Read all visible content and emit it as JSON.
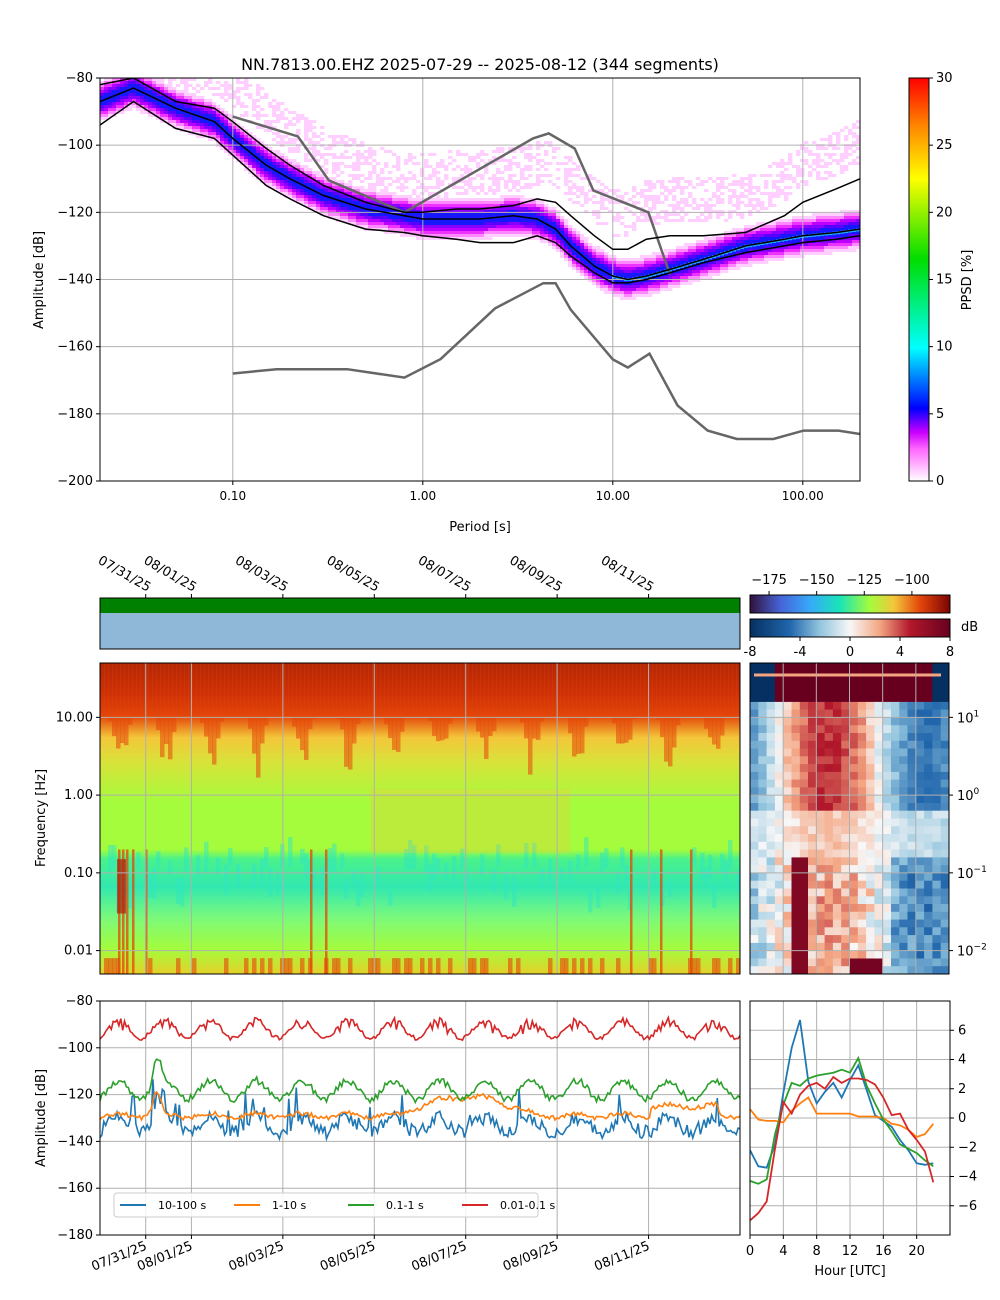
{
  "chart_data": [
    {
      "type": "heatmap",
      "panel": "ppsd",
      "title": "NN.7813.00.EHZ   2025-07-29 -- 2025-08-12  (344 segments)",
      "xlabel": "Period [s]",
      "ylabel": "Amplitude [dB]",
      "x_scale": "log",
      "xlim": [
        0.02,
        200
      ],
      "ylim": [
        -200,
        -80
      ],
      "x_ticks": [
        0.1,
        1,
        10,
        100
      ],
      "x_tick_labels": [
        "0.10",
        "1.00",
        "10.00",
        "100.00"
      ],
      "y_ticks": [
        -200,
        -180,
        -160,
        -140,
        -120,
        -100,
        -80
      ],
      "y_tick_labels": [
        "−200",
        "−180",
        "−160",
        "−140",
        "−120",
        "−100",
        "−80"
      ],
      "grid": true,
      "colorbar": {
        "label": "PPSD [%]",
        "range": [
          0,
          30
        ],
        "ticks": [
          0,
          5,
          10,
          15,
          20,
          25,
          30
        ],
        "tick_labels": [
          "0",
          "5",
          "10",
          "15",
          "20",
          "25",
          "30"
        ],
        "colormap": [
          "#ffffff",
          "#ff33ff",
          "#aa00ff",
          "#0000ff",
          "#00ffff",
          "#00ff00",
          "#ffff00",
          "#ff8800",
          "#ff0000"
        ]
      },
      "mode_curve": {
        "period": [
          0.02,
          0.03,
          0.05,
          0.08,
          0.1,
          0.15,
          0.2,
          0.3,
          0.5,
          0.8,
          1,
          1.5,
          2,
          3,
          4,
          5,
          6,
          8,
          10,
          12,
          15,
          20,
          30,
          50,
          80,
          100,
          150,
          200
        ],
        "db": [
          -87,
          -83,
          -89,
          -93,
          -98,
          -106,
          -110,
          -115,
          -119,
          -121,
          -122,
          -122,
          -122,
          -121,
          -122,
          -125,
          -130,
          -136,
          -139,
          -140,
          -139,
          -137,
          -134,
          -130,
          -128,
          -127,
          -126,
          -125
        ]
      },
      "percentile_curves": [
        {
          "period": [
            0.02,
            0.03,
            0.05,
            0.08,
            0.1,
            0.15,
            0.2,
            0.3,
            0.5,
            0.8,
            1,
            1.5,
            2,
            3,
            4,
            5,
            6,
            8,
            10,
            12,
            15,
            20,
            30,
            50,
            80,
            100,
            150,
            200
          ],
          "db": [
            -94,
            -87,
            -95,
            -98,
            -103,
            -112,
            -116,
            -121,
            -125,
            -126,
            -127,
            -128,
            -129,
            -129,
            -127,
            -129,
            -133,
            -138,
            -141,
            -141,
            -140,
            -138,
            -135,
            -132,
            -130,
            -129,
            -128,
            -127
          ]
        },
        {
          "period": [
            0.02,
            0.03,
            0.05,
            0.08,
            0.1,
            0.15,
            0.2,
            0.3,
            0.5,
            0.8,
            1,
            1.5,
            2,
            3,
            4,
            5,
            6,
            8,
            10,
            12,
            15,
            20,
            30,
            50,
            80,
            100,
            150,
            200
          ],
          "db": [
            -82,
            -80,
            -87,
            -89,
            -93,
            -101,
            -106,
            -112,
            -117,
            -120,
            -120,
            -119,
            -119,
            -118,
            -116,
            -117,
            -121,
            -127,
            -131,
            -131,
            -128,
            -127,
            -127,
            -126,
            -121,
            -117,
            -113,
            -110
          ]
        }
      ],
      "nlnm": {
        "period": [
          0.1,
          0.17,
          0.4,
          0.8,
          1.24,
          2.4,
          4.3,
          5.0,
          6.0,
          10,
          12,
          15.6,
          21.9,
          31.6,
          45,
          70,
          101,
          154,
          200
        ],
        "db": [
          -168,
          -166.7,
          -166.7,
          -169.2,
          -163.7,
          -148.6,
          -141.1,
          -141.1,
          -149,
          -163.8,
          -166.2,
          -162.1,
          -177.5,
          -185,
          -187.5,
          -187.5,
          -185,
          -185,
          -186
        ]
      },
      "nhnm": {
        "period": [
          0.1,
          0.22,
          0.32,
          0.8,
          3.8,
          4.6,
          6.3,
          7.9,
          15.4,
          20
        ],
        "db": [
          -91.5,
          -97.4,
          -110.5,
          -120,
          -98,
          -96.5,
          -101,
          -113.5,
          -120,
          -138.5
        ]
      }
    },
    {
      "type": "heatmap",
      "panel": "spectrogram",
      "ylabel": "Frequency [Hz]",
      "y_scale": "log",
      "ylim": [
        0.005,
        50
      ],
      "y_ticks": [
        0.01,
        0.1,
        1,
        10
      ],
      "y_tick_labels": [
        "0.01",
        "0.10",
        "1.00",
        "10.00"
      ],
      "date_ticks": [
        "07/31/25",
        "08/01/25",
        "08/03/25",
        "08/05/25",
        "08/07/25",
        "08/09/25",
        "08/11/25"
      ],
      "date_range": [
        "2025-07-30",
        "2025-08-13"
      ],
      "colorbar": {
        "range": [
          -185,
          -80
        ],
        "ticks": [
          -175,
          -150,
          -125,
          -100
        ],
        "tick_labels": [
          "−175",
          "−150",
          "−125",
          "−100"
        ]
      },
      "coverage_bar": {
        "availability_color": "#008000",
        "data_color": "#8fb8d8"
      }
    },
    {
      "type": "heatmap",
      "panel": "diurnal-anomaly",
      "colorbar": {
        "label": "dB",
        "range": [
          -8,
          8
        ],
        "ticks": [
          -8,
          -4,
          0,
          4,
          8
        ],
        "tick_labels": [
          "-8",
          "-4",
          "0",
          "4",
          "8"
        ]
      },
      "y_ticks": [
        0.01,
        0.1,
        1,
        10
      ],
      "y_tick_labels_base": [
        "10",
        "10",
        "10",
        "10"
      ],
      "y_tick_labels_exp": [
        "−2",
        "−1",
        "0",
        "1"
      ]
    },
    {
      "type": "line",
      "panel": "band-amplitude",
      "ylabel": "Amplitude [dB]",
      "ylim": [
        -180,
        -80
      ],
      "y_ticks": [
        -180,
        -160,
        -140,
        -120,
        -100,
        -80
      ],
      "y_tick_labels": [
        "−180",
        "−160",
        "−140",
        "−120",
        "−100",
        "−80"
      ],
      "date_ticks": [
        "07/31/25",
        "08/01/25",
        "08/03/25",
        "08/05/25",
        "08/07/25",
        "08/09/25",
        "08/11/25"
      ],
      "legend": "lower-left",
      "series": [
        {
          "name": "10-100 s",
          "color": "#1f77b4",
          "base": -133,
          "amp": 3,
          "noise": 3,
          "spikes": true
        },
        {
          "name": "1-10 s",
          "color": "#ff7f0e",
          "base": -129,
          "amp": 1,
          "noise": 1,
          "spikes": false
        },
        {
          "name": "0.1-1 s",
          "color": "#2ca02c",
          "base": -118,
          "amp": 4,
          "noise": 1.5,
          "spikes": false
        },
        {
          "name": "0.01-0.1 s",
          "color": "#d62728",
          "base": -92,
          "amp": 4,
          "noise": 1,
          "spikes": false
        }
      ]
    },
    {
      "type": "line",
      "panel": "diurnal-band",
      "xlabel": "Hour [UTC]",
      "xlim": [
        0,
        23
      ],
      "ylim": [
        -8,
        8
      ],
      "x_ticks": [
        0,
        4,
        8,
        12,
        16,
        20
      ],
      "x_tick_labels": [
        "0",
        "4",
        "8",
        "12",
        "16",
        "20"
      ],
      "y_ticks": [
        -6,
        -4,
        -2,
        0,
        2,
        4,
        6
      ],
      "y_tick_labels": [
        "−6",
        "−4",
        "−2",
        "0",
        "2",
        "4",
        "6"
      ],
      "series": [
        {
          "name": "10-100 s",
          "color": "#1f77b4",
          "x": [
            0,
            1,
            2,
            3,
            4,
            5,
            6,
            7,
            8,
            9,
            10,
            11,
            12,
            13,
            14,
            15,
            16,
            17,
            18,
            19,
            20,
            21,
            22
          ],
          "values": [
            -2.2,
            -3.3,
            -3.4,
            -1.8,
            1.7,
            4.8,
            6.7,
            2.5,
            1.0,
            1.8,
            2.4,
            1.4,
            2.6,
            3.6,
            1.9,
            0.2,
            -0.2,
            -0.6,
            -1.5,
            -2.2,
            -3.1,
            -3.2,
            -3.1
          ]
        },
        {
          "name": "1-10 s",
          "color": "#ff7f0e",
          "x": [
            0,
            1,
            2,
            3,
            4,
            5,
            6,
            7,
            8,
            9,
            10,
            11,
            12,
            13,
            14,
            15,
            16,
            17,
            18,
            19,
            20,
            21,
            22
          ],
          "values": [
            0.6,
            -0.1,
            -0.2,
            -0.2,
            -0.3,
            0.5,
            1.0,
            1.4,
            0.3,
            0.3,
            0.3,
            0.3,
            0.3,
            0.1,
            0.1,
            0.1,
            0.0,
            -0.4,
            -0.5,
            -0.8,
            -1.3,
            -1.1,
            -0.4
          ]
        },
        {
          "name": "0.1-1 s",
          "color": "#2ca02c",
          "x": [
            0,
            1,
            2,
            3,
            4,
            5,
            6,
            7,
            8,
            9,
            10,
            11,
            12,
            13,
            14,
            15,
            16,
            17,
            18,
            19,
            20,
            21,
            22
          ],
          "values": [
            -4.3,
            -4.5,
            -4.2,
            -1.1,
            0.9,
            2.4,
            2.2,
            2.7,
            2.9,
            3.0,
            3.1,
            3.3,
            3.1,
            4.1,
            2.2,
            1.0,
            -0.1,
            -0.9,
            -1.8,
            -2.1,
            -2.4,
            -2.9,
            -3.3
          ]
        },
        {
          "name": "0.01-0.1 s",
          "color": "#d62728",
          "x": [
            0,
            1,
            2,
            3,
            4,
            5,
            6,
            7,
            8,
            9,
            10,
            11,
            12,
            13,
            14,
            15,
            16,
            17,
            18,
            19,
            20,
            21,
            22
          ],
          "values": [
            -7.0,
            -6.5,
            -5.7,
            -2.1,
            1.1,
            0.3,
            1.6,
            2.2,
            2.4,
            2.0,
            2.8,
            2.4,
            2.7,
            2.7,
            2.6,
            2.3,
            1.4,
            0.2,
            0.3,
            -0.8,
            -1.5,
            -2.3,
            -4.4
          ]
        }
      ]
    }
  ]
}
